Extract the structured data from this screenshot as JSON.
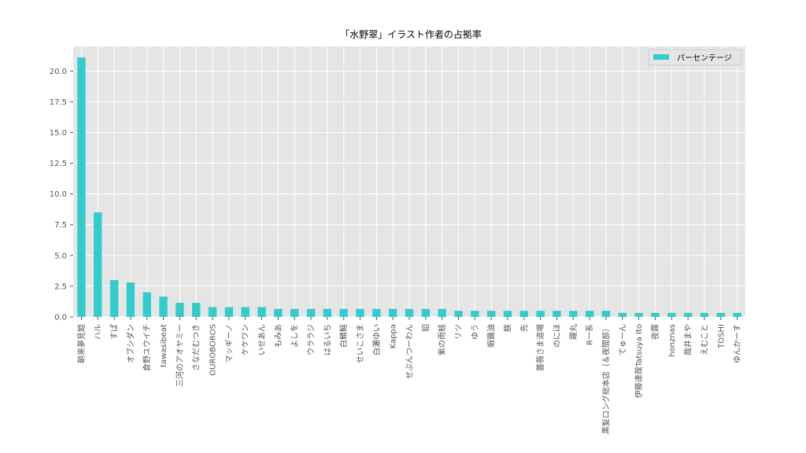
{
  "chart_data": {
    "type": "bar",
    "title": "「水野翠」イラスト作者の占拠率",
    "xlabel": "",
    "ylabel": "",
    "ylim": [
      0,
      22
    ],
    "yticks": [
      0.0,
      2.5,
      5.0,
      7.5,
      10.0,
      12.5,
      15.0,
      17.5,
      20.0
    ],
    "ytick_labels": [
      "0.0",
      "2.5",
      "5.0",
      "7.5",
      "10.0",
      "12.5",
      "15.0",
      "17.5",
      "20.0"
    ],
    "grid": true,
    "legend_position": "top-right",
    "bar_color": "#33cccc",
    "background_color": "#e5e5e5",
    "series": [
      {
        "name": "パーセンテージ"
      }
    ],
    "categories": [
      "朝来夢見姫",
      "ハル",
      "すぱ",
      "オブシダン",
      "倉野ユウイチ",
      "tawasibeat",
      "三河のアオヤミー",
      "さなだむつき",
      "OUROBOROS",
      "マッギーノ",
      "ケケワン",
      "いせあん",
      "もみあ",
      "よしを",
      "ウララジ",
      "はるいち",
      "白鯖鮭",
      "せいこさま",
      "白瀬ゆい",
      "Kappa",
      "せぷんつーわん",
      "貂",
      "紫の雨蛙",
      "リツ",
      "ゆう",
      "蝦醤油",
      "朕",
      "先",
      "薔薇さま道場",
      "のにほ",
      "躍丸",
      "R一系",
      "黒髪ロング総本店（＆夜間部）",
      "てゅーん",
      "伊藤達哉Tatsuya Ito",
      "夜霧",
      "honznas",
      "哉井まや",
      "えむこと",
      "TOSHI",
      "ゆんかーす"
    ],
    "values": [
      21.1,
      8.5,
      3.0,
      2.8,
      2.0,
      1.65,
      1.15,
      1.15,
      0.8,
      0.8,
      0.8,
      0.8,
      0.65,
      0.65,
      0.65,
      0.65,
      0.65,
      0.65,
      0.65,
      0.65,
      0.65,
      0.65,
      0.65,
      0.5,
      0.5,
      0.5,
      0.5,
      0.5,
      0.5,
      0.5,
      0.5,
      0.5,
      0.5,
      0.33,
      0.33,
      0.33,
      0.33,
      0.33,
      0.33,
      0.33,
      0.33
    ]
  }
}
